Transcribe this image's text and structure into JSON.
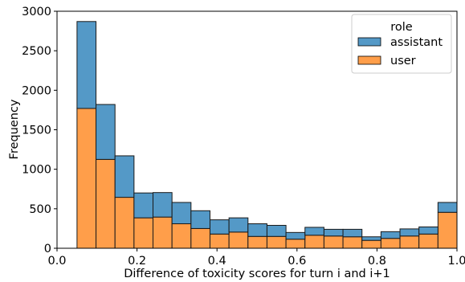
{
  "chart_data": {
    "type": "bar",
    "stacked": true,
    "histogram": true,
    "xlabel": "Difference of toxicity scores for turn i and i+1",
    "ylabel": "Frequency",
    "xlim": [
      0.0,
      1.0
    ],
    "ylim": [
      0,
      3000
    ],
    "xticks": [
      "0.0",
      "0.2",
      "0.4",
      "0.6",
      "0.8",
      "1.0"
    ],
    "yticks": [
      "0",
      "500",
      "1000",
      "1500",
      "2000",
      "2500",
      "3000"
    ],
    "grid": false,
    "legend": {
      "title": "role",
      "placement": "top-right"
    },
    "bin_edges": [
      0.05,
      0.0975,
      0.145,
      0.1925,
      0.24,
      0.2875,
      0.335,
      0.3825,
      0.43,
      0.4775,
      0.525,
      0.5725,
      0.62,
      0.6675,
      0.715,
      0.7625,
      0.81,
      0.8575,
      0.905,
      0.9525,
      1.0
    ],
    "series": [
      {
        "name": "user",
        "color": "#ff9e4a",
        "values": [
          1770,
          1125,
          645,
          385,
          395,
          310,
          250,
          180,
          205,
          150,
          150,
          115,
          165,
          155,
          145,
          100,
          125,
          155,
          180,
          455
        ]
      },
      {
        "name": "assistant",
        "color": "#5499c7",
        "values": [
          1100,
          695,
          525,
          315,
          310,
          270,
          225,
          180,
          180,
          160,
          140,
          85,
          100,
          85,
          95,
          45,
          85,
          90,
          90,
          125
        ]
      }
    ]
  }
}
